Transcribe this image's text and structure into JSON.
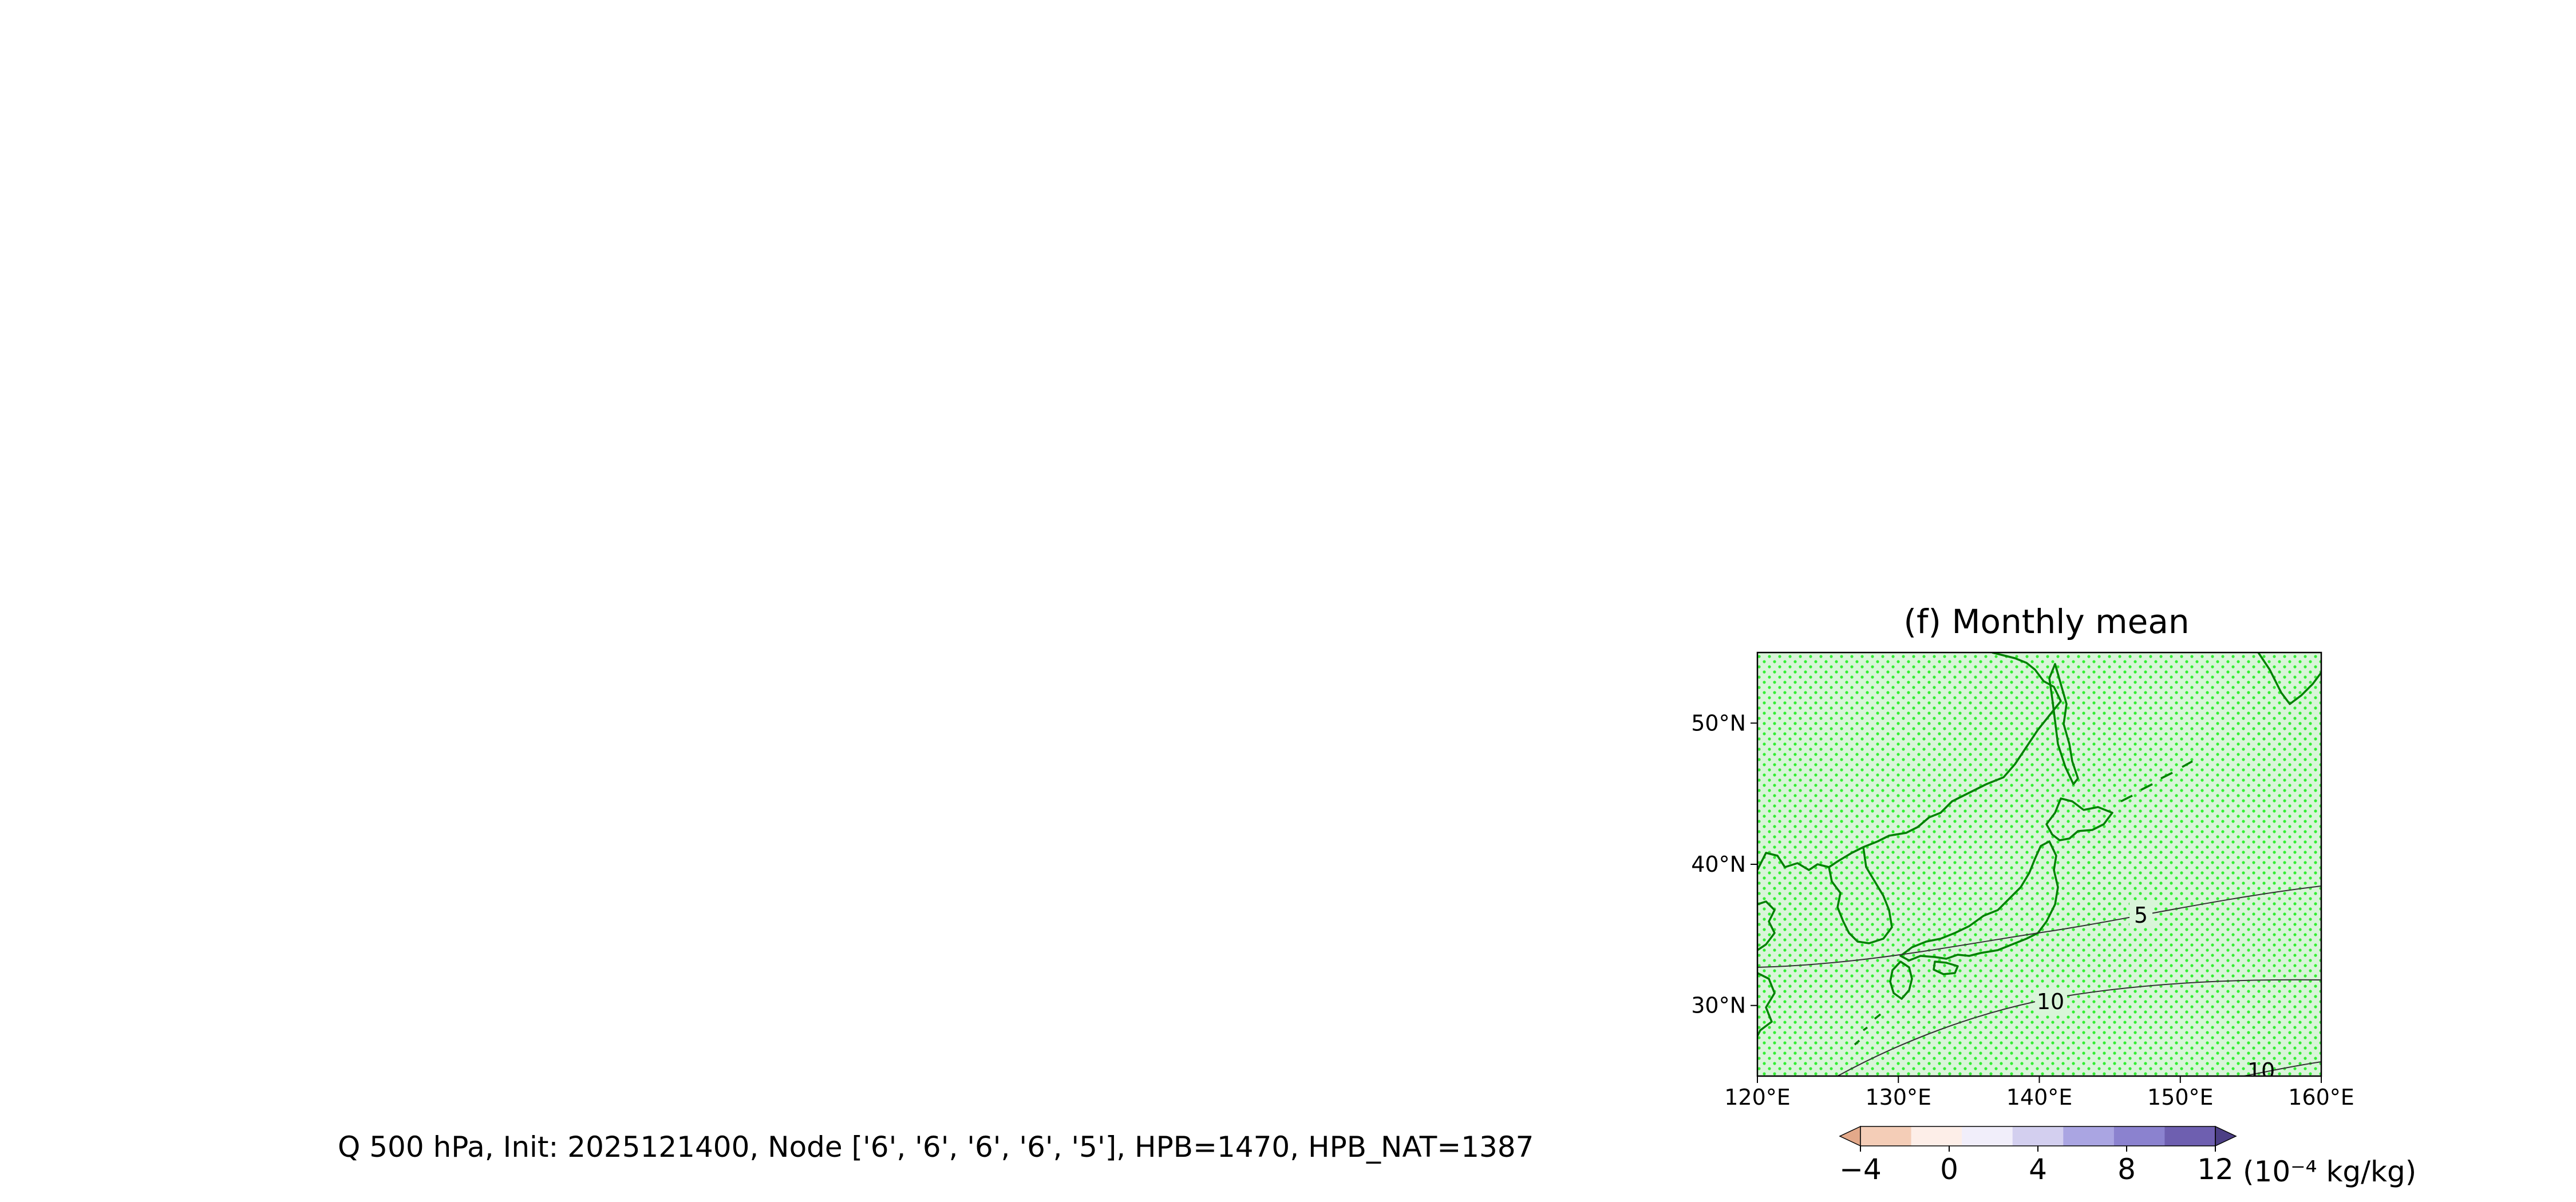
{
  "figure": {
    "panel_title": "(f) Monthly mean",
    "caption": "Q 500 hPa, Init: 2025121400, Node ['6', '6', '6', '6', '5'], HPB=1470, HPB_NAT=1387"
  },
  "map": {
    "lon_range": [
      120,
      160
    ],
    "lat_range": [
      25,
      55
    ],
    "x_ticks": [
      {
        "value": 120,
        "label": "120°E"
      },
      {
        "value": 130,
        "label": "130°E"
      },
      {
        "value": 140,
        "label": "140°E"
      },
      {
        "value": 150,
        "label": "150°E"
      },
      {
        "value": 160,
        "label": "160°E"
      }
    ],
    "y_ticks": [
      {
        "value": 30,
        "label": "30°N"
      },
      {
        "value": 40,
        "label": "40°N"
      },
      {
        "value": 50,
        "label": "50°N"
      }
    ],
    "coastline_color": "#008000",
    "stipple_color": "#33ee33",
    "contour_color": "#333333",
    "contour_labels": [
      "5",
      "10",
      "10"
    ]
  },
  "colorbar": {
    "tick_labels": [
      "−4",
      "0",
      "4",
      "8",
      "12"
    ],
    "unit_label": "(10⁻⁴ kg/kg)",
    "colors": [
      "#e3a98a",
      "#f4cdb7",
      "#fdeee8",
      "#f1eefa",
      "#d3cfef",
      "#aaa5e2",
      "#8b82cf",
      "#6e5fb0",
      "#4c3f85"
    ]
  }
}
